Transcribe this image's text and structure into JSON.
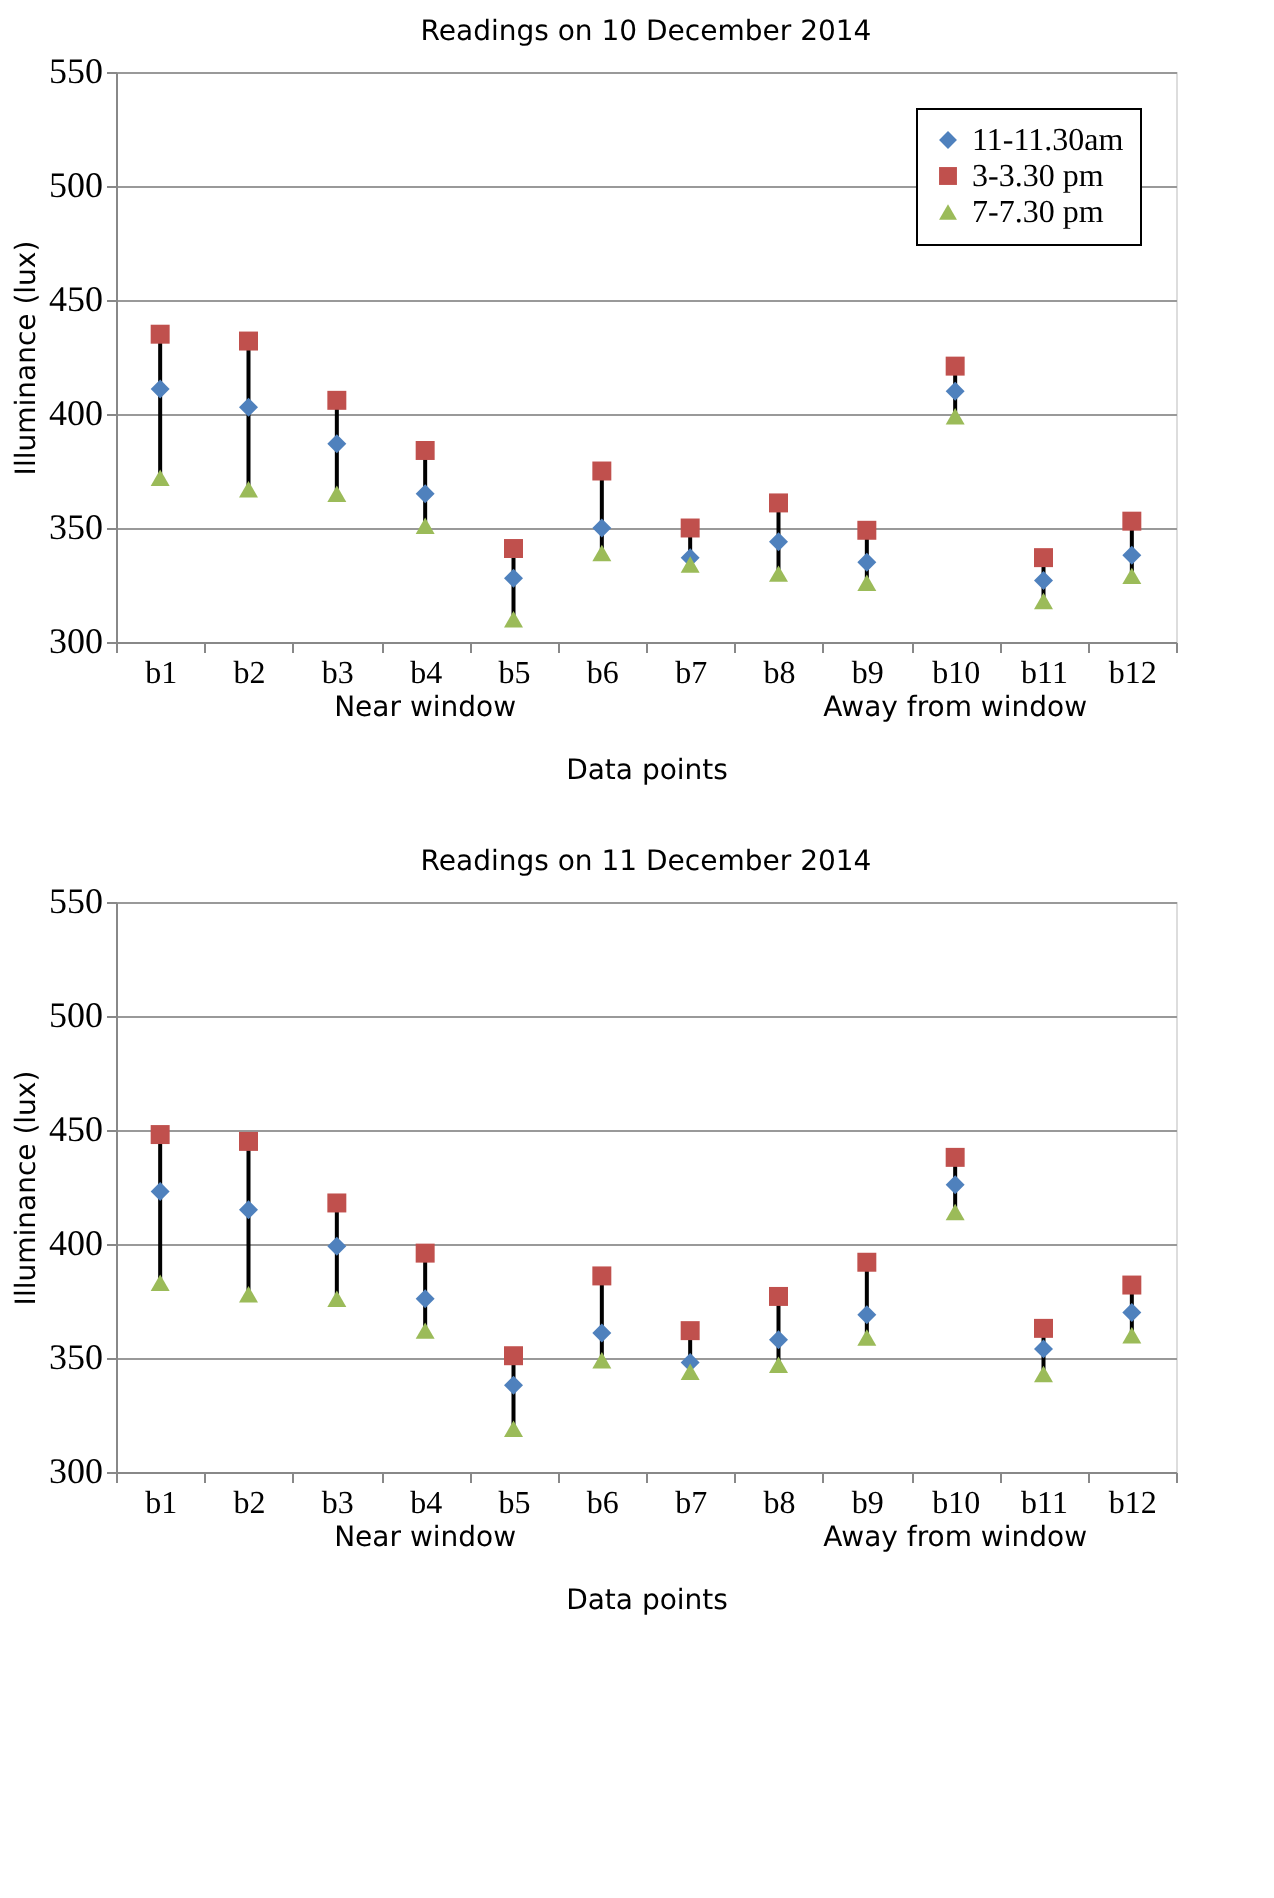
{
  "chart_data": [
    {
      "type": "scatter",
      "title": "Readings on 10 December 2014",
      "xlabel": "Data points",
      "ylabel": "Illuminance (lux)",
      "categories": [
        "b1",
        "b2",
        "b3",
        "b4",
        "b5",
        "b6",
        "b7",
        "b8",
        "b9",
        "b10",
        "b11",
        "b12"
      ],
      "series": [
        {
          "name": "11-11.30am",
          "color": "#4f81bd",
          "marker": "diamond",
          "values": [
            411,
            403,
            387,
            365,
            328,
            350,
            337,
            344,
            335,
            410,
            327,
            338
          ]
        },
        {
          "name": "3-3.30 pm",
          "color": "#c0504d",
          "marker": "square",
          "values": [
            435,
            432,
            406,
            384,
            341,
            375,
            350,
            361,
            349,
            421,
            337,
            353
          ]
        },
        {
          "name": "7-7.30 pm",
          "color": "#9bbb59",
          "marker": "triangle",
          "values": [
            372,
            367,
            365,
            351,
            310,
            339,
            334,
            330,
            326,
            399,
            318,
            329
          ]
        }
      ],
      "ylim": [
        300,
        550
      ],
      "yticks": [
        300,
        350,
        400,
        450,
        500,
        550
      ],
      "grid": "y",
      "legend": "top right",
      "annotations": [
        "Near window",
        "Away from window"
      ]
    },
    {
      "type": "scatter",
      "title": "Readings on 11 December 2014",
      "xlabel": "Data points",
      "ylabel": "Illuminance (lux)",
      "categories": [
        "b1",
        "b2",
        "b3",
        "b4",
        "b5",
        "b6",
        "b7",
        "b8",
        "b9",
        "b10",
        "b11",
        "b12"
      ],
      "series": [
        {
          "name": "11-11.30am",
          "color": "#4f81bd",
          "marker": "diamond",
          "values": [
            423,
            415,
            399,
            376,
            338,
            361,
            348,
            358,
            369,
            426,
            354,
            370
          ]
        },
        {
          "name": "3-3.30 pm",
          "color": "#c0504d",
          "marker": "square",
          "values": [
            448,
            445,
            418,
            396,
            351,
            386,
            362,
            377,
            392,
            438,
            363,
            382
          ]
        },
        {
          "name": "7-7.30 pm",
          "color": "#9bbb59",
          "marker": "triangle",
          "values": [
            383,
            378,
            376,
            362,
            319,
            349,
            344,
            347,
            359,
            414,
            343,
            360
          ]
        }
      ],
      "ylim": [
        300,
        550
      ],
      "yticks": [
        300,
        350,
        400,
        450,
        500,
        550
      ],
      "grid": "y",
      "legend": "top right",
      "annotations": [
        "Near window",
        "Away from window"
      ]
    }
  ]
}
